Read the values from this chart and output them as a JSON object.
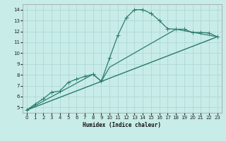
{
  "xlabel": "Humidex (Indice chaleur)",
  "background_color": "#c8ece8",
  "grid_color": "#b0d8d4",
  "line_color": "#2d7d6e",
  "xlim": [
    -0.5,
    23.5
  ],
  "ylim": [
    4.5,
    14.5
  ],
  "xticks": [
    0,
    1,
    2,
    3,
    4,
    5,
    6,
    7,
    8,
    9,
    10,
    11,
    12,
    13,
    14,
    15,
    16,
    17,
    18,
    19,
    20,
    21,
    22,
    23
  ],
  "yticks": [
    5,
    6,
    7,
    8,
    9,
    10,
    11,
    12,
    13,
    14
  ],
  "series": [
    {
      "x": [
        0,
        1,
        2,
        3,
        4,
        5,
        6,
        7,
        8,
        9,
        10,
        11,
        12,
        13,
        14,
        15,
        16,
        17,
        18,
        19,
        20,
        21,
        22,
        23
      ],
      "y": [
        4.75,
        5.3,
        5.8,
        6.4,
        6.5,
        7.3,
        7.6,
        7.85,
        8.05,
        7.4,
        9.55,
        11.65,
        13.25,
        14.0,
        14.0,
        13.65,
        13.0,
        12.25,
        12.2,
        12.2,
        11.9,
        11.9,
        11.85,
        11.5
      ],
      "marker": true,
      "markersize": 2.2,
      "linewidth": 0.9
    },
    {
      "x": [
        0,
        8,
        9,
        10,
        18,
        23
      ],
      "y": [
        4.75,
        8.05,
        7.4,
        8.7,
        12.2,
        11.5
      ],
      "marker": false,
      "linewidth": 0.9
    },
    {
      "x": [
        0,
        23
      ],
      "y": [
        4.75,
        11.5
      ],
      "marker": false,
      "linewidth": 0.85
    },
    {
      "x": [
        0,
        23
      ],
      "y": [
        4.75,
        11.5
      ],
      "marker": false,
      "linewidth": 0.7
    }
  ]
}
